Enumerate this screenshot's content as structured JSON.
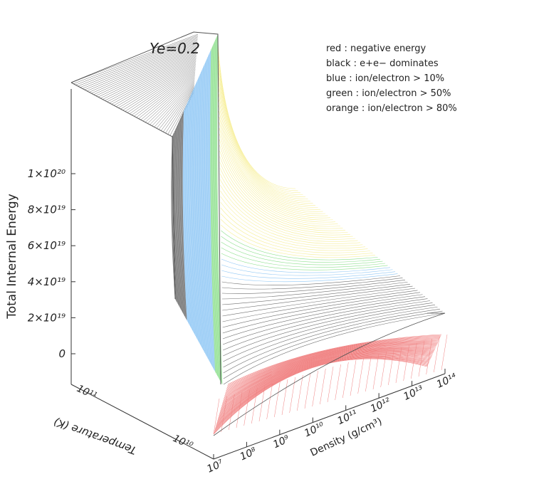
{
  "chart_data": {
    "type": "surface3d",
    "title": "Ye=0.2",
    "zlabel": "Total Internal Energy",
    "xlabel": "Density (g/cm³)",
    "ylabel": "Temperature (K)",
    "z_ticks": [
      {
        "value": 1e+20,
        "label": "1×10²⁰"
      },
      {
        "value": 8e+19,
        "label": "8×10¹⁹"
      },
      {
        "value": 6e+19,
        "label": "6×10¹⁹"
      },
      {
        "value": 4e+19,
        "label": "4×10¹⁹"
      },
      {
        "value": 2e+19,
        "label": "2×10¹⁹"
      },
      {
        "value": 0,
        "label": "0"
      }
    ],
    "x_ticks": [
      {
        "value": 7,
        "label": "10⁷"
      },
      {
        "value": 8,
        "label": "10⁸"
      },
      {
        "value": 9,
        "label": "10⁹"
      },
      {
        "value": 10,
        "label": "10¹⁰"
      },
      {
        "value": 11,
        "label": "10¹¹"
      },
      {
        "value": 12,
        "label": "10¹²"
      },
      {
        "value": 13,
        "label": "10¹³"
      },
      {
        "value": 14,
        "label": "10¹⁴"
      }
    ],
    "y_ticks": [
      {
        "value": 10,
        "label": "10¹⁰"
      },
      {
        "value": 11,
        "label": "10¹¹"
      }
    ],
    "legend": [
      {
        "key": "red",
        "text": "red    : negative energy"
      },
      {
        "key": "black",
        "text": "black  : e+e− dominates"
      },
      {
        "key": "blue",
        "text": "blue   : ion/electron > 10%"
      },
      {
        "key": "green",
        "text": "green  : ion/electron > 50%"
      },
      {
        "key": "orange",
        "text": "orange : ion/electron > 80%"
      }
    ],
    "legend_placement": "top-right",
    "colors": {
      "red": "#f08080",
      "black": "#6e6e6e",
      "blue": "#8fc7f5",
      "green": "#8ee08e",
      "orange": "#f7ef9a"
    }
  }
}
